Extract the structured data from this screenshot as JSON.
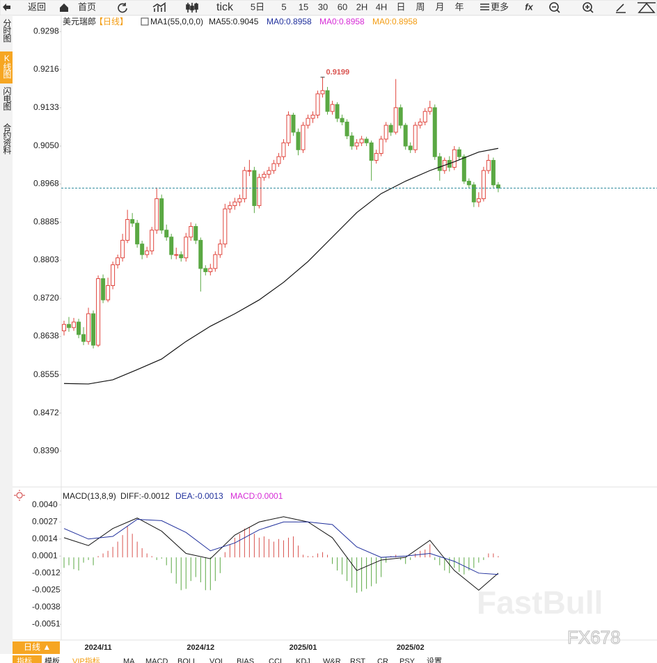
{
  "toolbar": {
    "items": [
      "返回",
      "首页",
      "tick",
      "5日",
      "5",
      "15",
      "30",
      "60",
      "2H",
      "4H",
      "日",
      "周",
      "月",
      "年",
      "更多",
      "fx"
    ]
  },
  "sidebar": {
    "tabs": [
      "分时图",
      "K线图",
      "闪电图",
      "合约资料"
    ],
    "active": 1
  },
  "legend": {
    "symbol": "美元瑞郎",
    "period": "【日线】",
    "indicator": "MA1(55,0,0,0)",
    "items": [
      "MA55:0.9045",
      "MA0:0.8958",
      "MA0:0.8958",
      "MA0:0.8958"
    ]
  },
  "macd_legend": {
    "items": [
      "MACD(13,8,9)",
      "DIFF:-0.0012",
      "DEA:-0.0013",
      "MACD:0.0001"
    ]
  },
  "bottom_bar": {
    "period": "日线 ▲",
    "tabs": [
      "指标",
      "模板",
      "VIP指标",
      "MA",
      "MACD",
      "BOLL",
      "VOL",
      "BIAS",
      "CCI",
      "KDJ",
      "W&R",
      "RST",
      "CR",
      "PSY",
      "设置"
    ]
  },
  "watermark": [
    "FastBull",
    "FX678"
  ],
  "chart_data": [
    {
      "type": "candlestick",
      "up_color": "#e0443c",
      "down_color": "#5aa843",
      "ylim": [
        0.8312,
        0.9333
      ],
      "yticks": [
        0.9298,
        0.9216,
        0.9133,
        {
          "value": 0.905,
          "label": "0.9050"
        },
        0.8968,
        0.8885,
        0.8803,
        {
          "value": 0.872,
          "label": "0.8720"
        },
        0.8638,
        0.8555,
        0.8472,
        {
          "value": 0.839,
          "label": "0.8390"
        }
      ],
      "categories": [
        null,
        null,
        null,
        null,
        null,
        null,
        null,
        "2024/11",
        null,
        null,
        null,
        null,
        null,
        null,
        null,
        null,
        null,
        null,
        null,
        null,
        null,
        null,
        null,
        null,
        null,
        null,
        null,
        null,
        "2024/12",
        null,
        null,
        null,
        null,
        null,
        null,
        null,
        null,
        null,
        null,
        null,
        null,
        null,
        null,
        null,
        null,
        null,
        null,
        null,
        null,
        "2025/01",
        null,
        null,
        null,
        null,
        null,
        null,
        null,
        null,
        null,
        null,
        null,
        null,
        null,
        null,
        null,
        null,
        null,
        null,
        null,
        null,
        null,
        "2025/02",
        null,
        null,
        null,
        null,
        null,
        null,
        null,
        null,
        null,
        null,
        null,
        null,
        null,
        null,
        null,
        null,
        null,
        null
      ],
      "ohlc": [
        [
          0.865,
          0.8672,
          0.864,
          0.8664
        ],
        [
          0.8664,
          0.868,
          0.8648,
          0.8657
        ],
        [
          0.8657,
          0.8678,
          0.865,
          0.8669
        ],
        [
          0.8669,
          0.8676,
          0.8634,
          0.8642
        ],
        [
          0.8642,
          0.8658,
          0.8619,
          0.8627
        ],
        [
          0.8627,
          0.87,
          0.862,
          0.8687
        ],
        [
          0.8687,
          0.8694,
          0.8612,
          0.8619
        ],
        [
          0.8619,
          0.877,
          0.8615,
          0.8763
        ],
        [
          0.8763,
          0.8772,
          0.871,
          0.8717
        ],
        [
          0.8717,
          0.8765,
          0.8712,
          0.8748
        ],
        [
          0.8748,
          0.88,
          0.874,
          0.8793
        ],
        [
          0.8793,
          0.8815,
          0.8785,
          0.8808
        ],
        [
          0.8808,
          0.886,
          0.88,
          0.8846
        ],
        [
          0.8846,
          0.8912,
          0.884,
          0.8891
        ],
        [
          0.8891,
          0.8905,
          0.8875,
          0.8883
        ],
        [
          0.8883,
          0.889,
          0.883,
          0.8838
        ],
        [
          0.8838,
          0.8845,
          0.8805,
          0.8815
        ],
        [
          0.8815,
          0.8832,
          0.8808,
          0.8823
        ],
        [
          0.8823,
          0.8875,
          0.8815,
          0.8868
        ],
        [
          0.8868,
          0.896,
          0.886,
          0.8936
        ],
        [
          0.8936,
          0.8945,
          0.886,
          0.8868
        ],
        [
          0.8868,
          0.888,
          0.8845,
          0.8853
        ],
        [
          0.8853,
          0.886,
          0.8805,
          0.8815
        ],
        [
          0.8815,
          0.883,
          0.8805,
          0.8815
        ],
        [
          0.8815,
          0.8822,
          0.88,
          0.8808
        ],
        [
          0.8808,
          0.8862,
          0.88,
          0.8853
        ],
        [
          0.8853,
          0.8885,
          0.8845,
          0.8876
        ],
        [
          0.8876,
          0.8882,
          0.8838,
          0.8846
        ],
        [
          0.8846,
          0.8852,
          0.8735,
          0.8785
        ],
        [
          0.8785,
          0.8792,
          0.877,
          0.8778
        ],
        [
          0.8778,
          0.8795,
          0.877,
          0.8785
        ],
        [
          0.8785,
          0.8822,
          0.8778,
          0.8815
        ],
        [
          0.8815,
          0.8848,
          0.8808,
          0.8838
        ],
        [
          0.8838,
          0.8925,
          0.883,
          0.8914
        ],
        [
          0.8914,
          0.893,
          0.8905,
          0.8921
        ],
        [
          0.8921,
          0.8938,
          0.8912,
          0.8929
        ],
        [
          0.8929,
          0.8945,
          0.892,
          0.8936
        ],
        [
          0.8936,
          0.9005,
          0.8928,
          0.8997
        ],
        [
          0.8997,
          0.902,
          0.8985,
          0.8997
        ],
        [
          0.8997,
          0.9005,
          0.8905,
          0.8921
        ],
        [
          0.8921,
          0.899,
          0.8915,
          0.8982
        ],
        [
          0.8982,
          0.8995,
          0.8975,
          0.8989
        ],
        [
          0.8989,
          0.9005,
          0.898,
          0.8997
        ],
        [
          0.8997,
          0.902,
          0.899,
          0.9012
        ],
        [
          0.9012,
          0.9035,
          0.9005,
          0.9027
        ],
        [
          0.9027,
          0.9065,
          0.902,
          0.9057
        ],
        [
          0.9057,
          0.9125,
          0.905,
          0.9117
        ],
        [
          0.9117,
          0.9122,
          0.9072,
          0.908
        ],
        [
          0.908,
          0.9088,
          0.903,
          0.9042
        ],
        [
          0.9042,
          0.9102,
          0.9035,
          0.9095
        ],
        [
          0.9095,
          0.9118,
          0.9088,
          0.911
        ],
        [
          0.911,
          0.9125,
          0.91,
          0.9117
        ],
        [
          0.9117,
          0.917,
          0.911,
          0.9163
        ],
        [
          0.9163,
          0.9199,
          0.9155,
          0.917
        ],
        [
          0.917,
          0.9178,
          0.9118,
          0.9125
        ],
        [
          0.9125,
          0.9148,
          0.9118,
          0.914
        ],
        [
          0.914,
          0.9145,
          0.9102,
          0.911
        ],
        [
          0.911,
          0.9118,
          0.9095,
          0.9102
        ],
        [
          0.9102,
          0.9108,
          0.9065,
          0.9072
        ],
        [
          0.9072,
          0.908,
          0.9042,
          0.905
        ],
        [
          0.905,
          0.9065,
          0.9042,
          0.9057
        ],
        [
          0.9057,
          0.9072,
          0.905,
          0.9065
        ],
        [
          0.9065,
          0.907,
          0.905,
          0.9057
        ],
        [
          0.9057,
          0.9062,
          0.8975,
          0.9019
        ],
        [
          0.9019,
          0.9042,
          0.9012,
          0.9034
        ],
        [
          0.9034,
          0.9072,
          0.9028,
          0.9065
        ],
        [
          0.9065,
          0.9102,
          0.9058,
          0.9095
        ],
        [
          0.9095,
          0.91,
          0.9072,
          0.908
        ],
        [
          0.908,
          0.9195,
          0.9075,
          0.9133
        ],
        [
          0.9133,
          0.914,
          0.9088,
          0.9095
        ],
        [
          0.9095,
          0.91,
          0.9042,
          0.905
        ],
        [
          0.905,
          0.9058,
          0.9035,
          0.9042
        ],
        [
          0.9042,
          0.9102,
          0.9035,
          0.9095
        ],
        [
          0.9095,
          0.911,
          0.9088,
          0.9102
        ],
        [
          0.9102,
          0.9132,
          0.9095,
          0.9125
        ],
        [
          0.9125,
          0.9148,
          0.9118,
          0.9133
        ],
        [
          0.9133,
          0.914,
          0.902,
          0.9027
        ],
        [
          0.9027,
          0.9035,
          0.8975,
          0.8997
        ],
        [
          0.8997,
          0.9025,
          0.899,
          0.9019
        ],
        [
          0.9019,
          0.9028,
          0.8995,
          0.9004
        ],
        [
          0.9004,
          0.905,
          0.8998,
          0.9042
        ],
        [
          0.9042,
          0.9048,
          0.902,
          0.9027
        ],
        [
          0.9027,
          0.9032,
          0.8968,
          0.8974
        ],
        [
          0.8974,
          0.898,
          0.8958,
          0.8966
        ],
        [
          0.8966,
          0.8972,
          0.8918,
          0.8929
        ],
        [
          0.8929,
          0.895,
          0.8918,
          0.8936
        ],
        [
          0.8936,
          0.9005,
          0.893,
          0.8997
        ],
        [
          0.8997,
          0.9032,
          0.899,
          0.9019
        ],
        [
          0.9019,
          0.9025,
          0.896,
          0.8966
        ],
        [
          0.8966,
          0.8972,
          0.895,
          0.8959
        ]
      ],
      "ma55": {
        "color": "#111111",
        "x": [
          0,
          5,
          10,
          15,
          20,
          25,
          30,
          35,
          40,
          45,
          50,
          55,
          60,
          65,
          70,
          75,
          80,
          85,
          89
        ],
        "values": [
          0.8536,
          0.8535,
          0.8544,
          0.8566,
          0.8589,
          0.8627,
          0.866,
          0.8687,
          0.8717,
          0.8755,
          0.88,
          0.8853,
          0.8906,
          0.8947,
          0.8974,
          0.8997,
          0.9016,
          0.9037,
          0.9045
        ]
      },
      "last_price_color": "#2b8a9c"
    },
    {
      "type": "macd",
      "ylim": [
        -0.0063,
        0.0051
      ],
      "yticks": [
        {
          "value": 0.004,
          "label": "0.0040"
        },
        0.0027,
        0.0014,
        0.0001,
        -0.0012,
        -0.0025,
        -0.0038,
        -0.0051
      ],
      "histogram": {
        "up_color": "#d9534f",
        "down_color": "#5aa843",
        "values": [
          -0.0008,
          -0.0006,
          -0.0009,
          -0.001,
          -0.0004,
          -0.0002,
          -0.0006,
          0.0001,
          0.0003,
          0.0005,
          0.0008,
          0.0012,
          0.0017,
          0.0024,
          0.0018,
          0.0012,
          0.0007,
          0.0003,
          0.0001,
          -0.0002,
          -0.0001,
          -0.0006,
          -0.0012,
          -0.002,
          -0.0025,
          -0.0024,
          -0.0018,
          -0.0015,
          -0.0019,
          -0.0025,
          -0.0025,
          -0.0018,
          -0.0012,
          0.0004,
          0.001,
          0.0015,
          0.0018,
          0.0022,
          0.0023,
          0.0018,
          0.0015,
          0.0016,
          0.0014,
          0.0012,
          0.0014,
          0.0013,
          0.0015,
          0.0016,
          0.0009,
          0.0002,
          0.0001,
          0.0001,
          0.0003,
          0.0004,
          0.0002,
          -0.0005,
          -0.001,
          -0.0013,
          -0.0018,
          -0.0023,
          -0.0027,
          -0.0026,
          -0.0024,
          -0.0022,
          -0.002,
          -0.0015,
          -0.0004,
          0.0001,
          0.0002,
          -0.0002,
          -0.0005,
          -0.0002,
          0.0003,
          0.0005,
          0.0006,
          0.001,
          -0.0002,
          -0.0006,
          -0.001,
          -0.0012,
          -0.0008,
          -0.0011,
          -0.0013,
          -0.001,
          -0.0008,
          -0.0004,
          -0.0002,
          0.0003,
          0.0003,
          0.0001
        ]
      },
      "series": [
        {
          "name": "DIFF",
          "color": "#111111",
          "x": [
            0,
            5,
            10,
            15,
            20,
            25,
            30,
            35,
            40,
            45,
            50,
            55,
            60,
            65,
            70,
            75,
            80,
            85,
            89
          ],
          "values": [
            0.0015,
            0.0009,
            0.0022,
            0.003,
            0.002,
            0.0003,
            -0.0001,
            0.0017,
            0.0027,
            0.0031,
            0.0027,
            0.0015,
            -0.001,
            -0.0002,
            0.0,
            0.0013,
            -0.001,
            -0.0025,
            -0.0012
          ]
        },
        {
          "name": "DEA",
          "color": "#1f2f9c",
          "x": [
            0,
            5,
            10,
            15,
            20,
            25,
            30,
            35,
            40,
            45,
            50,
            55,
            60,
            65,
            70,
            75,
            80,
            85,
            89
          ],
          "values": [
            0.0022,
            0.0014,
            0.0016,
            0.0029,
            0.0028,
            0.0019,
            0.0005,
            0.0011,
            0.0021,
            0.0027,
            0.0027,
            0.0025,
            0.0008,
            0.0,
            0.0001,
            0.0003,
            -0.0003,
            -0.0012,
            -0.0013
          ]
        }
      ]
    }
  ]
}
